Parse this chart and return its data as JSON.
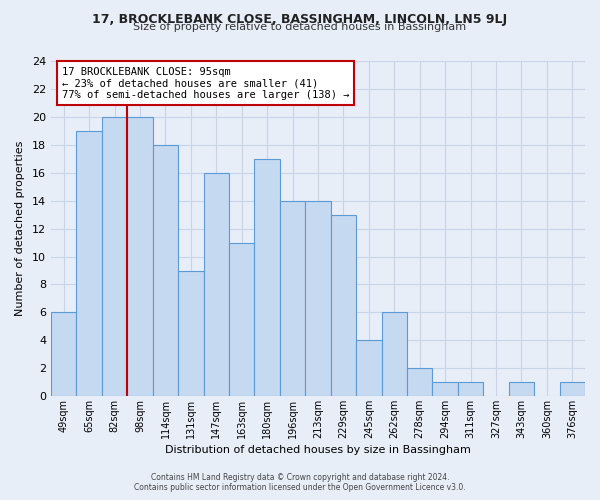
{
  "title": "17, BROCKLEBANK CLOSE, BASSINGHAM, LINCOLN, LN5 9LJ",
  "subtitle": "Size of property relative to detached houses in Bassingham",
  "xlabel": "Distribution of detached houses by size in Bassingham",
  "ylabel": "Number of detached properties",
  "footer_line1": "Contains HM Land Registry data © Crown copyright and database right 2024.",
  "footer_line2": "Contains public sector information licensed under the Open Government Licence v3.0.",
  "bin_labels": [
    "49sqm",
    "65sqm",
    "82sqm",
    "98sqm",
    "114sqm",
    "131sqm",
    "147sqm",
    "163sqm",
    "180sqm",
    "196sqm",
    "213sqm",
    "229sqm",
    "245sqm",
    "262sqm",
    "278sqm",
    "294sqm",
    "311sqm",
    "327sqm",
    "343sqm",
    "360sqm",
    "376sqm"
  ],
  "bar_values": [
    6,
    19,
    20,
    20,
    18,
    9,
    16,
    11,
    17,
    14,
    14,
    13,
    4,
    6,
    2,
    1,
    1,
    0,
    1,
    0,
    1
  ],
  "bar_color": "#c5d9f1",
  "bar_edge_color": "#5b9bd5",
  "reference_label": "17 BROCKLEBANK CLOSE: 95sqm",
  "annotation_line1": "← 23% of detached houses are smaller (41)",
  "annotation_line2": "77% of semi-detached houses are larger (138) →",
  "annotation_box_color": "#ffffff",
  "annotation_box_edge": "#c00000",
  "ref_line_color": "#c00000",
  "ylim": [
    0,
    24
  ],
  "yticks": [
    0,
    2,
    4,
    6,
    8,
    10,
    12,
    14,
    16,
    18,
    20,
    22,
    24
  ],
  "grid_color": "#c8d4e8",
  "bg_color": "#e8eef8"
}
